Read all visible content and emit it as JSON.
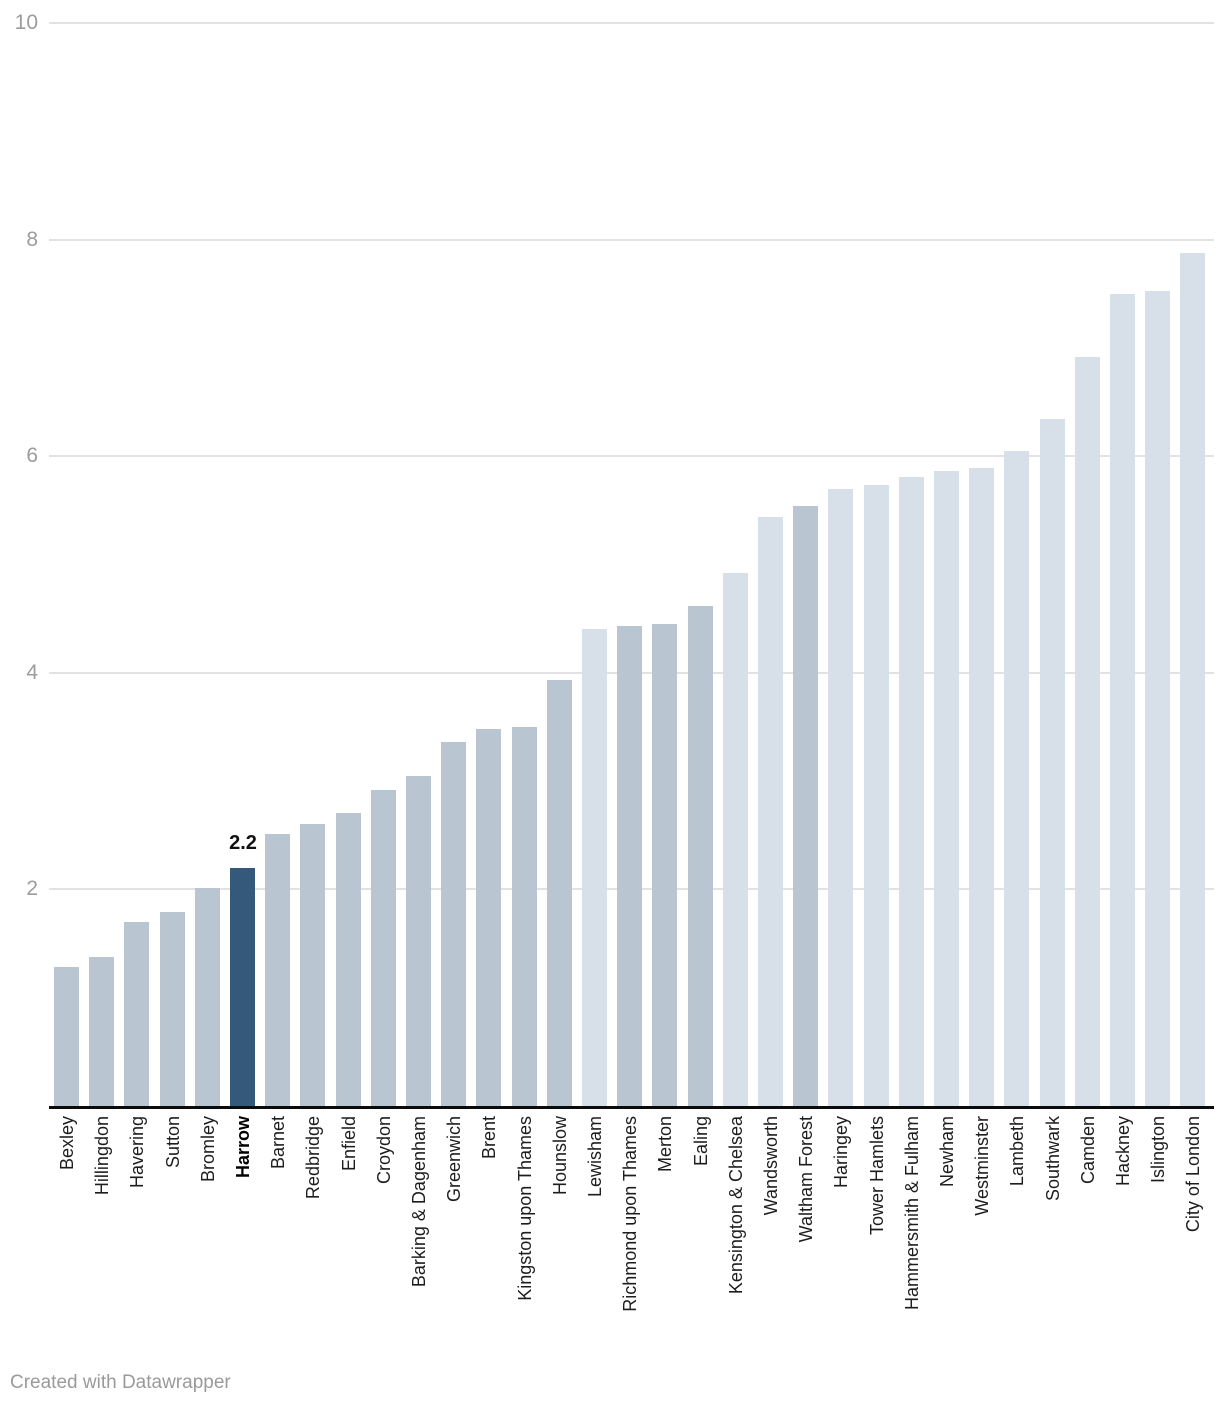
{
  "footer": {
    "credit": "Created with Datawrapper"
  },
  "chart_data": {
    "type": "bar",
    "title": "",
    "xlabel": "",
    "ylabel": "",
    "ylim": [
      0,
      10
    ],
    "yticks": [
      2,
      4,
      6,
      8,
      10
    ],
    "grid": true,
    "legend_position": "none",
    "highlight_category": "Harrow",
    "highlight_value_label": "2.2",
    "categories": [
      "Bexley",
      "Hillingdon",
      "Havering",
      "Sutton",
      "Bromley",
      "Harrow",
      "Barnet",
      "Redbridge",
      "Enfield",
      "Croydon",
      "Barking & Dagenham",
      "Greenwich",
      "Brent",
      "Kingston upon Thames",
      "Hounslow",
      "Lewisham",
      "Richmond upon Thames",
      "Merton",
      "Ealing",
      "Kensington & Chelsea",
      "Wandsworth",
      "Waltham Forest",
      "Haringey",
      "Tower Hamlets",
      "Hammersmith & Fulham",
      "Newham",
      "Westminster",
      "Lambeth",
      "Southwark",
      "Camden",
      "Hackney",
      "Islington",
      "City of London"
    ],
    "values": [
      1.28,
      1.38,
      1.7,
      1.79,
      2.01,
      2.2,
      2.51,
      2.6,
      2.71,
      2.92,
      3.05,
      3.36,
      3.48,
      3.5,
      3.93,
      4.4,
      4.43,
      4.45,
      4.62,
      4.92,
      5.44,
      5.54,
      5.7,
      5.73,
      5.81,
      5.86,
      5.89,
      6.05,
      6.34,
      6.92,
      7.5,
      7.53,
      7.88
    ],
    "color_groups": [
      "default",
      "default",
      "default",
      "default",
      "default",
      "highlight",
      "default",
      "default",
      "default",
      "default",
      "default",
      "default",
      "default",
      "default",
      "default",
      "light",
      "default",
      "default",
      "default",
      "light",
      "light",
      "default",
      "light",
      "light",
      "light",
      "light",
      "light",
      "light",
      "light",
      "light",
      "light",
      "light",
      "light"
    ],
    "colors": {
      "default": "#b9c6d2",
      "light": "#d7e0e9",
      "highlight": "#34597b",
      "gridline": "#e2e2e2",
      "axis_line": "#0b0b0b",
      "ytick_text": "#9c9c9c",
      "xlabel_text": "#1d1d1d"
    }
  }
}
